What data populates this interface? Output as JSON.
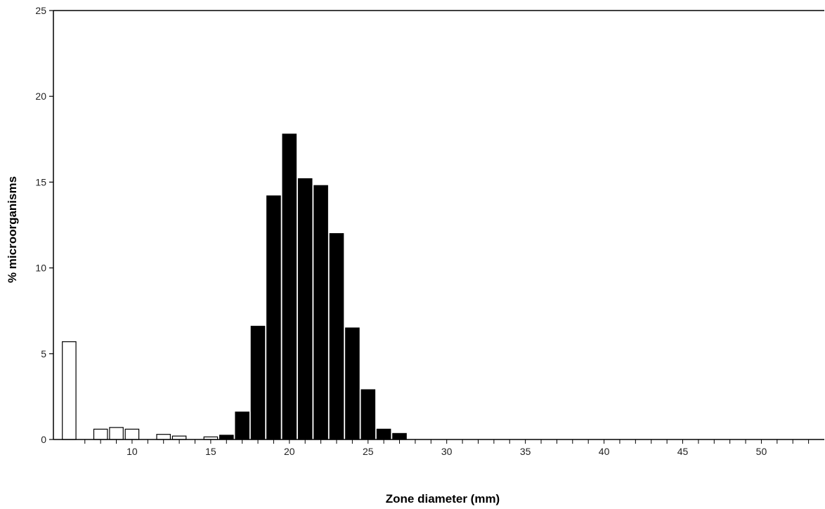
{
  "chart_data": {
    "type": "bar",
    "title": "",
    "xlabel": "Zone diameter (mm)",
    "ylabel": "% microorganisms",
    "xlim": [
      5,
      54
    ],
    "ylim": [
      0,
      25
    ],
    "x_ticks": [
      10,
      15,
      20,
      25,
      30,
      35,
      40,
      45,
      50
    ],
    "y_ticks": [
      0,
      5,
      10,
      15,
      20,
      25
    ],
    "grid": false,
    "legend": "none",
    "series": [
      {
        "fill": "#ffffff",
        "x": [
          6,
          8,
          9,
          10,
          12,
          13,
          15
        ],
        "values": [
          5.7,
          0.6,
          0.7,
          0.6,
          0.3,
          0.2,
          0.15
        ]
      },
      {
        "fill": "#000000",
        "x": [
          16,
          17,
          18,
          19,
          20,
          21,
          22,
          23,
          24,
          25,
          26,
          27
        ],
        "values": [
          0.25,
          1.6,
          6.6,
          14.2,
          17.8,
          15.2,
          14.8,
          12.0,
          6.5,
          2.9,
          0.6,
          0.35
        ]
      }
    ],
    "colors": {
      "axis": "#000000",
      "bar_outline": "#000000"
    }
  }
}
